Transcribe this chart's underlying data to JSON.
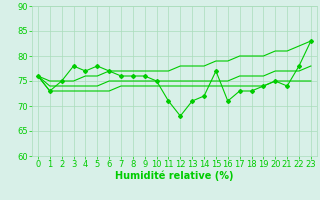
{
  "x": [
    0,
    1,
    2,
    3,
    4,
    5,
    6,
    7,
    8,
    9,
    10,
    11,
    12,
    13,
    14,
    15,
    16,
    17,
    18,
    19,
    20,
    21,
    22,
    23
  ],
  "y_main": [
    76,
    73,
    75,
    78,
    77,
    78,
    77,
    76,
    76,
    76,
    75,
    71,
    68,
    71,
    72,
    77,
    71,
    73,
    73,
    74,
    75,
    74,
    78,
    83
  ],
  "y_upper": [
    76,
    75,
    75,
    75,
    76,
    76,
    77,
    77,
    77,
    77,
    77,
    77,
    78,
    78,
    78,
    79,
    79,
    80,
    80,
    80,
    81,
    81,
    82,
    83
  ],
  "y_lower": [
    76,
    73,
    73,
    73,
    73,
    73,
    73,
    74,
    74,
    74,
    74,
    74,
    74,
    74,
    74,
    74,
    74,
    74,
    74,
    74,
    75,
    75,
    75,
    75
  ],
  "y_mid": [
    76,
    74,
    74,
    74,
    74,
    74,
    75,
    75,
    75,
    75,
    75,
    75,
    75,
    75,
    75,
    75,
    75,
    76,
    76,
    76,
    77,
    77,
    77,
    78
  ],
  "line_color": "#00cc00",
  "bg_color": "#d8f0e8",
  "grid_color": "#aaddbb",
  "xlabel": "Humidité relative (%)",
  "ylim": [
    60,
    90
  ],
  "xlim": [
    -0.5,
    23.5
  ],
  "yticks": [
    60,
    65,
    70,
    75,
    80,
    85,
    90
  ],
  "xticks": [
    0,
    1,
    2,
    3,
    4,
    5,
    6,
    7,
    8,
    9,
    10,
    11,
    12,
    13,
    14,
    15,
    16,
    17,
    18,
    19,
    20,
    21,
    22,
    23
  ],
  "xlabel_fontsize": 7,
  "tick_fontsize": 6,
  "marker": "D",
  "marker_size": 2,
  "linewidth": 0.8
}
